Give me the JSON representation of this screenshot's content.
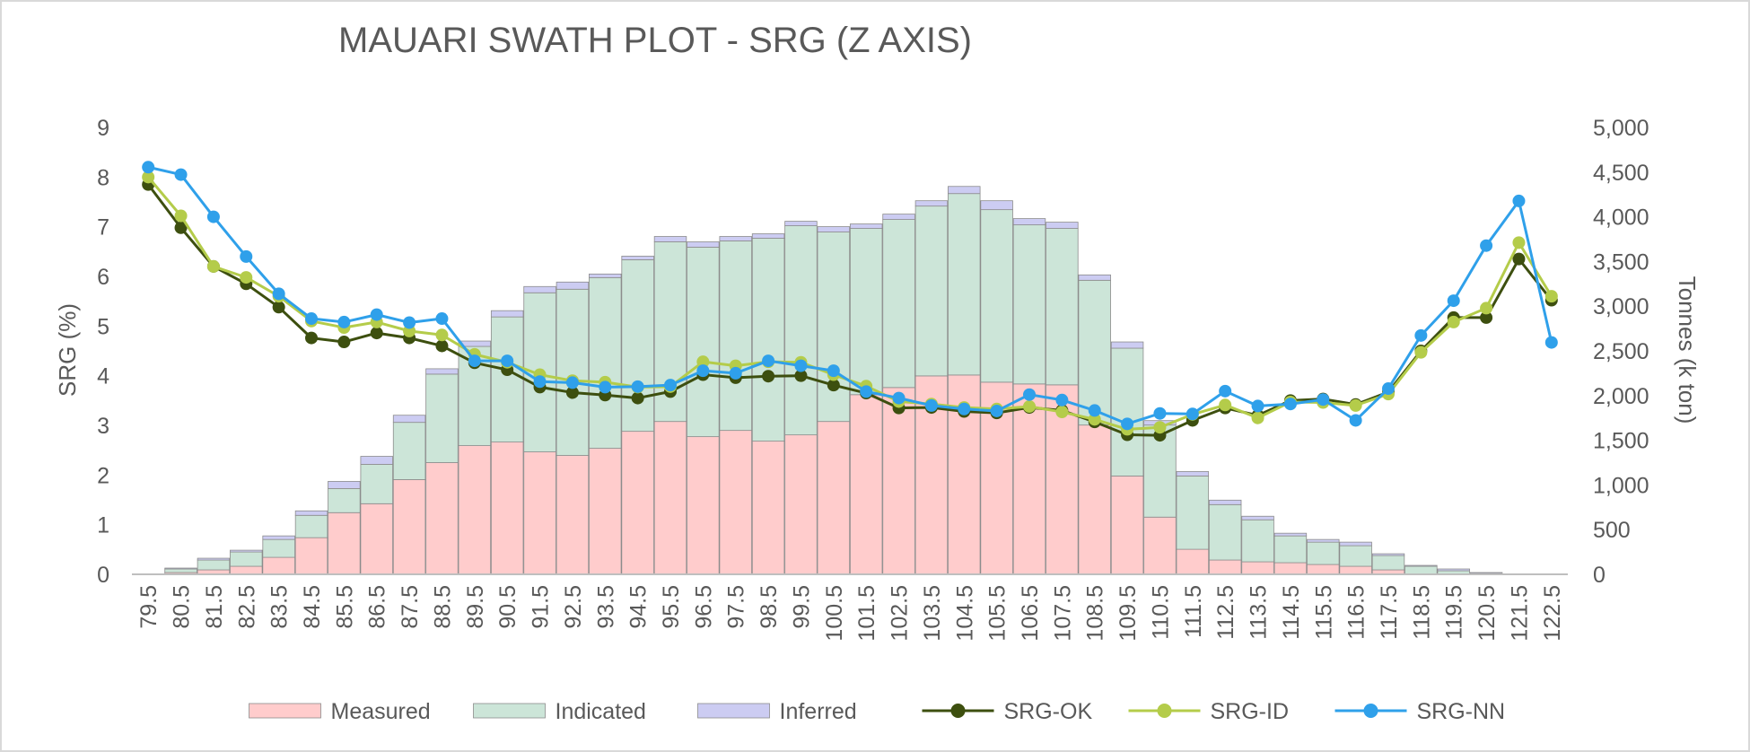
{
  "chart_data": {
    "type": "bar",
    "title": "MAUARI SWATH PLOT - SRG (Z AXIS)",
    "xlabel": "",
    "ylabel": "SRG (%)",
    "y2label": "Tonnes  (k ton)",
    "ylim": [
      0,
      9
    ],
    "y2lim": [
      0,
      5000
    ],
    "yticks": [
      "0",
      "1",
      "2",
      "3",
      "4",
      "5",
      "6",
      "7",
      "8",
      "9"
    ],
    "y2ticks": [
      "0",
      "500",
      "1,000",
      "1,500",
      "2,000",
      "2,500",
      "3,000",
      "3,500",
      "4,000",
      "4,500",
      "5,000"
    ],
    "grid": false,
    "legend_position": "bottom",
    "categories": [
      "79.5",
      "80.5",
      "81.5",
      "82.5",
      "83.5",
      "84.5",
      "85.5",
      "86.5",
      "87.5",
      "88.5",
      "89.5",
      "90.5",
      "91.5",
      "92.5",
      "93.5",
      "94.5",
      "95.5",
      "96.5",
      "97.5",
      "98.5",
      "99.5",
      "100.5",
      "101.5",
      "102.5",
      "103.5",
      "104.5",
      "105.5",
      "106.5",
      "107.5",
      "108.5",
      "109.5",
      "110.5",
      "111.5",
      "112.5",
      "113.5",
      "114.5",
      "115.5",
      "116.5",
      "117.5",
      "118.5",
      "119.5",
      "120.5",
      "121.5",
      "122.5"
    ],
    "stacked_series": [
      {
        "name": "Measured",
        "color": "#ffcccc",
        "values": [
          0,
          20,
          50,
          90,
          190,
          410,
          690,
          790,
          1060,
          1250,
          1440,
          1480,
          1370,
          1330,
          1410,
          1600,
          1710,
          1540,
          1610,
          1490,
          1560,
          1710,
          2010,
          2090,
          2220,
          2230,
          2150,
          2130,
          2120,
          1670,
          1100,
          640,
          280,
          160,
          140,
          130,
          110,
          90,
          50,
          0,
          0,
          0,
          0,
          0
        ]
      },
      {
        "name": "Indicated",
        "color": "#cce5d8",
        "values": [
          0,
          40,
          110,
          160,
          200,
          250,
          270,
          440,
          640,
          990,
          1110,
          1400,
          1780,
          1860,
          1910,
          1920,
          2010,
          2120,
          2120,
          2270,
          2340,
          2120,
          1860,
          1880,
          1900,
          2030,
          1930,
          1780,
          1750,
          1620,
          1430,
          1030,
          820,
          620,
          470,
          300,
          250,
          230,
          160,
          90,
          40,
          10,
          0,
          0
        ]
      },
      {
        "name": "Inferred",
        "color": "#ccccf2",
        "values": [
          0,
          10,
          20,
          20,
          40,
          50,
          80,
          90,
          80,
          60,
          60,
          70,
          70,
          80,
          40,
          40,
          60,
          60,
          50,
          50,
          50,
          60,
          50,
          60,
          60,
          80,
          100,
          70,
          70,
          60,
          70,
          50,
          50,
          50,
          40,
          30,
          30,
          40,
          20,
          10,
          20,
          10,
          0,
          0
        ]
      }
    ],
    "line_series": [
      {
        "name": "SRG-OK",
        "color": "#3d4f0f",
        "values": [
          7.85,
          6.98,
          6.2,
          5.85,
          5.38,
          4.76,
          4.68,
          4.86,
          4.76,
          4.6,
          4.26,
          4.12,
          3.77,
          3.66,
          3.61,
          3.55,
          3.68,
          4.02,
          3.96,
          3.99,
          4.0,
          3.81,
          3.65,
          3.35,
          3.36,
          3.28,
          3.25,
          3.36,
          3.3,
          3.07,
          2.81,
          2.8,
          3.1,
          3.35,
          3.2,
          3.5,
          3.53,
          3.42,
          3.67,
          4.5,
          5.17,
          5.17,
          6.35,
          5.52
        ]
      },
      {
        "name": "SRG-ID",
        "color": "#b4cc4a",
        "values": [
          8.0,
          7.22,
          6.2,
          5.98,
          5.6,
          5.1,
          4.97,
          5.08,
          4.9,
          4.82,
          4.43,
          4.27,
          4.02,
          3.9,
          3.87,
          3.77,
          3.78,
          4.28,
          4.2,
          4.28,
          4.27,
          4.02,
          3.79,
          3.48,
          3.43,
          3.36,
          3.33,
          3.38,
          3.27,
          3.12,
          2.92,
          2.96,
          3.22,
          3.41,
          3.15,
          3.47,
          3.46,
          3.4,
          3.63,
          4.47,
          5.08,
          5.36,
          6.68,
          5.6
        ]
      },
      {
        "name": "SRG-NN",
        "color": "#2fa0ea",
        "values": [
          8.2,
          8.05,
          7.2,
          6.4,
          5.65,
          5.15,
          5.08,
          5.23,
          5.07,
          5.15,
          4.3,
          4.3,
          3.88,
          3.86,
          3.77,
          3.78,
          3.81,
          4.1,
          4.05,
          4.3,
          4.2,
          4.1,
          3.68,
          3.55,
          3.4,
          3.33,
          3.29,
          3.62,
          3.51,
          3.3,
          3.03,
          3.24,
          3.23,
          3.69,
          3.39,
          3.43,
          3.52,
          3.1,
          3.74,
          4.81,
          5.51,
          6.62,
          7.52,
          4.67
        ]
      }
    ]
  }
}
